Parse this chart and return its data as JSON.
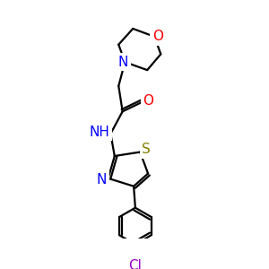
{
  "bg_color": "#ffffff",
  "atom_colors": {
    "C": "#000000",
    "N": "#0000ff",
    "O": "#ff0000",
    "S": "#808000",
    "Cl": "#9900cc",
    "H": "#0000ff"
  },
  "bond_color": "#000000",
  "bond_width": 1.6,
  "figsize": [
    3.0,
    3.0
  ],
  "dpi": 100
}
